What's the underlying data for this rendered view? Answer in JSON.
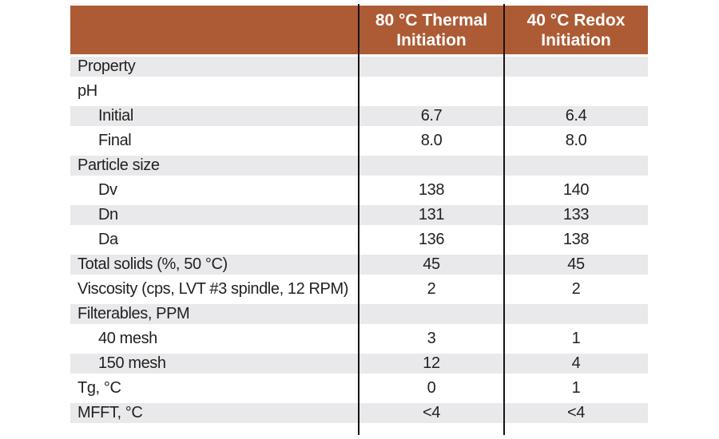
{
  "colors": {
    "header_bg": "#ac5b35",
    "header_text": "#ffffff",
    "stripe": "#e9e9eb",
    "text": "#231f20",
    "divider": "#161412"
  },
  "chart_data": {
    "type": "table",
    "col_headers": [
      {
        "label": "80 °C Thermal Initiation",
        "line1": "80 °C Thermal",
        "line2": "Initiation"
      },
      {
        "label": "40 °C Redox Initiation",
        "line1": "40 °C Redox",
        "line2": "Initiation"
      }
    ],
    "rows": [
      {
        "label": "Property",
        "thermal": "",
        "redox": ""
      },
      {
        "label": "pH",
        "thermal": "",
        "redox": ""
      },
      {
        "label": "Initial",
        "thermal": "6.7",
        "redox": "6.4"
      },
      {
        "label": "Final",
        "thermal": "8.0",
        "redox": "8.0"
      },
      {
        "label": "Particle size",
        "thermal": "",
        "redox": ""
      },
      {
        "label": "Dv",
        "thermal": "138",
        "redox": "140"
      },
      {
        "label": "Dn",
        "thermal": "131",
        "redox": "133"
      },
      {
        "label": "Da",
        "thermal": "136",
        "redox": "138"
      },
      {
        "label": "Total solids (%, 50 °C)",
        "thermal": "45",
        "redox": "45"
      },
      {
        "label": "Viscosity (cps, LVT #3 spindle, 12 RPM)",
        "thermal": "2",
        "redox": "2"
      },
      {
        "label": "Filterables, PPM",
        "thermal": "",
        "redox": ""
      },
      {
        "label": "40 mesh",
        "thermal": "3",
        "redox": "1"
      },
      {
        "label": "150 mesh",
        "thermal": "12",
        "redox": "4"
      },
      {
        "label": "Tg, °C",
        "thermal": "0",
        "redox": "1"
      },
      {
        "label": "MFFT, °C",
        "thermal": "<4",
        "redox": "<4"
      }
    ]
  }
}
